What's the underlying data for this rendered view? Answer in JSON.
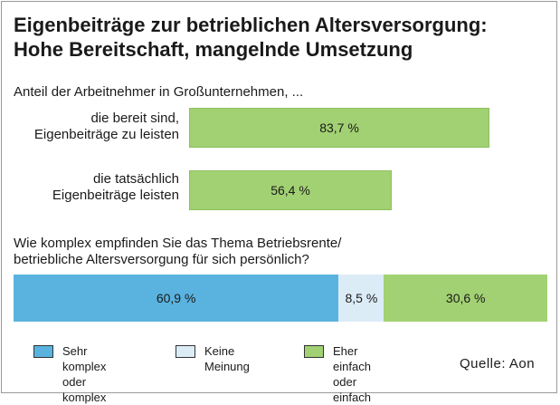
{
  "chart_data": {
    "type": "bar",
    "title": "Eigenbeiträge zur betrieblichen Altersversorgung:\nHohe Bereitschaft, mangelnde Umsetzung",
    "subtitle": "Anteil der Arbeitnehmer in Großunternehmen, ...",
    "bars": [
      {
        "label": "die bereit sind,\nEigenbeiträge zu leisten",
        "value": 83.7,
        "value_label": "83,7 %"
      },
      {
        "label": "die tatsächlich\nEigenbeiträge leisten",
        "value": 56.4,
        "value_label": "56,4 %"
      }
    ],
    "xlim": [
      0,
      100
    ],
    "question": "Wie komplex empfinden Sie das Thema Betriebsrente/\nbetriebliche Altersversorgung für sich persönlich?",
    "stacked": {
      "type": "bar",
      "orientation": "horizontal-stacked",
      "series": [
        {
          "name": "Sehr komplex\noder komplex",
          "value": 60.9,
          "value_label": "60,9 %",
          "color": "#5ab3df"
        },
        {
          "name": "Keine Meinung",
          "value": 8.5,
          "value_label": "8,5 %",
          "color": "#dcecf7"
        },
        {
          "name": "Eher einfach\noder einfach",
          "value": 30.6,
          "value_label": "30,6 %",
          "color": "#a2d173"
        }
      ]
    },
    "source": "Quelle: Aon"
  },
  "colors": {
    "bar_green": "#a2d173",
    "blue": "#5ab3df",
    "light_blue": "#dcecf7"
  }
}
